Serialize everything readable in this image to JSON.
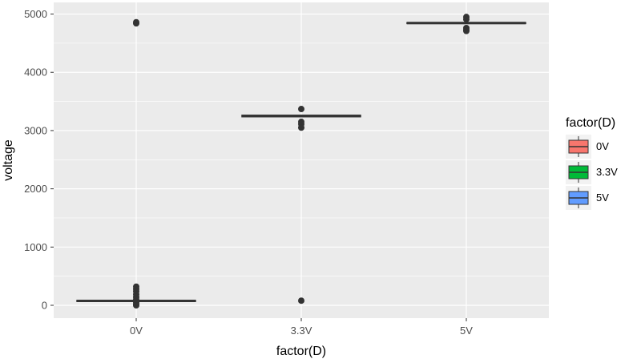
{
  "chart_data": {
    "type": "boxplot",
    "x_title": "factor(D)",
    "y_title": "voltage",
    "categories": [
      "0V",
      "3.3V",
      "5V"
    ],
    "y_ticks": [
      0,
      1000,
      2000,
      3000,
      4000,
      5000
    ],
    "ylim": [
      -220,
      5200
    ],
    "grid": true,
    "legend": {
      "title": "factor(D)",
      "position": "right",
      "entries": [
        {
          "label": "0V",
          "color": "#F8766D"
        },
        {
          "label": "3.3V",
          "color": "#00BA38"
        },
        {
          "label": "5V",
          "color": "#619CFF"
        }
      ]
    },
    "boxes": [
      {
        "category": "0V",
        "q1": 65,
        "median": 75,
        "q3": 85,
        "outliers": [
          4860,
          4840,
          320,
          280,
          240,
          190,
          140,
          100,
          50,
          20,
          0
        ]
      },
      {
        "category": "3.3V",
        "q1": 3235,
        "median": 3250,
        "q3": 3265,
        "outliers": [
          3370,
          3150,
          3110,
          3050,
          80
        ]
      },
      {
        "category": "5V",
        "q1": 4835,
        "median": 4845,
        "q3": 4855,
        "outliers": [
          4950,
          4910,
          4760,
          4730,
          4710
        ]
      }
    ]
  }
}
